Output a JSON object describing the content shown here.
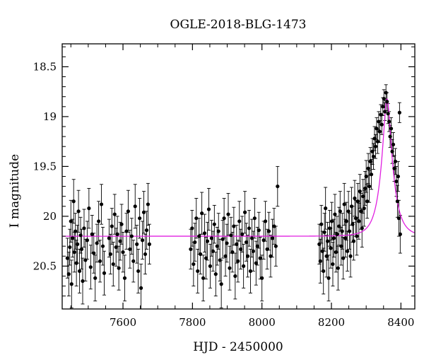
{
  "chart_data": {
    "type": "scatter",
    "title": "OGLE-2018-BLG-1473",
    "xlabel": "HJD - 2450000",
    "ylabel": "I magnitude",
    "xlim": [
      7425,
      8440
    ],
    "ylim": [
      20.93,
      18.27
    ],
    "y_inverted": true,
    "grid": false,
    "x_ticks": [
      7600,
      7800,
      8000,
      8200,
      8400
    ],
    "x_tick_labels": [
      "7600",
      "7800",
      "8000",
      "8200",
      "8400"
    ],
    "y_ticks": [
      18.5,
      19,
      19.5,
      20,
      20.5
    ],
    "y_tick_labels": [
      "18.5",
      "19",
      "19.5",
      "20",
      "20.5"
    ],
    "marker_color": "#000000",
    "model_color": "#e020e0",
    "model_curve": {
      "name": "model",
      "baseline_mag": 20.2,
      "peak_time": 8360,
      "peak_mag": 18.82,
      "tE": 32,
      "u0": 0.3
    },
    "points": [
      {
        "x": 7440,
        "y": 20.42,
        "err": 0.2
      },
      {
        "x": 7444,
        "y": 20.58,
        "err": 0.22
      },
      {
        "x": 7447,
        "y": 20.31,
        "err": 0.18
      },
      {
        "x": 7450,
        "y": 20.05,
        "err": 0.21
      },
      {
        "x": 7452,
        "y": 20.68,
        "err": 0.24
      },
      {
        "x": 7455,
        "y": 20.22,
        "err": 0.19
      },
      {
        "x": 7458,
        "y": 19.85,
        "err": 0.22
      },
      {
        "x": 7460,
        "y": 20.36,
        "err": 0.2
      },
      {
        "x": 7463,
        "y": 20.15,
        "err": 0.18
      },
      {
        "x": 7466,
        "y": 20.47,
        "err": 0.23
      },
      {
        "x": 7469,
        "y": 20.28,
        "err": 0.19
      },
      {
        "x": 7472,
        "y": 19.95,
        "err": 0.21
      },
      {
        "x": 7475,
        "y": 20.55,
        "err": 0.22
      },
      {
        "x": 7478,
        "y": 20.19,
        "err": 0.18
      },
      {
        "x": 7481,
        "y": 20.33,
        "err": 0.2
      },
      {
        "x": 7484,
        "y": 20.65,
        "err": 0.23
      },
      {
        "x": 7488,
        "y": 20.12,
        "err": 0.19
      },
      {
        "x": 7492,
        "y": 20.44,
        "err": 0.21
      },
      {
        "x": 7497,
        "y": 20.24,
        "err": 0.19
      },
      {
        "x": 7502,
        "y": 19.92,
        "err": 0.2
      },
      {
        "x": 7507,
        "y": 20.51,
        "err": 0.22
      },
      {
        "x": 7511,
        "y": 20.18,
        "err": 0.19
      },
      {
        "x": 7516,
        "y": 20.37,
        "err": 0.2
      },
      {
        "x": 7520,
        "y": 20.62,
        "err": 0.23
      },
      {
        "x": 7525,
        "y": 20.27,
        "err": 0.19
      },
      {
        "x": 7530,
        "y": 20.05,
        "err": 0.2
      },
      {
        "x": 7534,
        "y": 20.45,
        "err": 0.21
      },
      {
        "x": 7538,
        "y": 19.88,
        "err": 0.2
      },
      {
        "x": 7542,
        "y": 20.3,
        "err": 0.19
      },
      {
        "x": 7546,
        "y": 20.57,
        "err": 0.22
      },
      {
        "x": 7560,
        "y": 20.22,
        "err": 0.19
      },
      {
        "x": 7564,
        "y": 20.38,
        "err": 0.2
      },
      {
        "x": 7568,
        "y": 20.1,
        "err": 0.18
      },
      {
        "x": 7572,
        "y": 20.48,
        "err": 0.22
      },
      {
        "x": 7576,
        "y": 19.98,
        "err": 0.2
      },
      {
        "x": 7580,
        "y": 20.31,
        "err": 0.19
      },
      {
        "x": 7584,
        "y": 20.18,
        "err": 0.18
      },
      {
        "x": 7588,
        "y": 20.52,
        "err": 0.22
      },
      {
        "x": 7592,
        "y": 20.25,
        "err": 0.19
      },
      {
        "x": 7596,
        "y": 20.08,
        "err": 0.2
      },
      {
        "x": 7600,
        "y": 20.36,
        "err": 0.2
      },
      {
        "x": 7605,
        "y": 20.62,
        "err": 0.23
      },
      {
        "x": 7610,
        "y": 20.15,
        "err": 0.18
      },
      {
        "x": 7615,
        "y": 19.95,
        "err": 0.21
      },
      {
        "x": 7620,
        "y": 20.33,
        "err": 0.19
      },
      {
        "x": 7625,
        "y": 20.2,
        "err": 0.18
      },
      {
        "x": 7630,
        "y": 20.45,
        "err": 0.21
      },
      {
        "x": 7635,
        "y": 19.9,
        "err": 0.22
      },
      {
        "x": 7640,
        "y": 20.28,
        "err": 0.19
      },
      {
        "x": 7644,
        "y": 20.55,
        "err": 0.22
      },
      {
        "x": 7648,
        "y": 20.02,
        "err": 0.2
      },
      {
        "x": 7652,
        "y": 20.72,
        "err": 0.24
      },
      {
        "x": 7656,
        "y": 20.24,
        "err": 0.19
      },
      {
        "x": 7660,
        "y": 19.96,
        "err": 0.21
      },
      {
        "x": 7664,
        "y": 20.38,
        "err": 0.2
      },
      {
        "x": 7668,
        "y": 20.14,
        "err": 0.19
      },
      {
        "x": 7672,
        "y": 19.88,
        "err": 0.21
      },
      {
        "x": 7676,
        "y": 20.28,
        "err": 0.2
      },
      {
        "x": 7795,
        "y": 20.33,
        "err": 0.2
      },
      {
        "x": 7799,
        "y": 20.12,
        "err": 0.18
      },
      {
        "x": 7803,
        "y": 20.48,
        "err": 0.22
      },
      {
        "x": 7807,
        "y": 20.26,
        "err": 0.19
      },
      {
        "x": 7811,
        "y": 20.02,
        "err": 0.2
      },
      {
        "x": 7815,
        "y": 20.55,
        "err": 0.22
      },
      {
        "x": 7819,
        "y": 20.2,
        "err": 0.18
      },
      {
        "x": 7823,
        "y": 20.38,
        "err": 0.2
      },
      {
        "x": 7827,
        "y": 19.97,
        "err": 0.21
      },
      {
        "x": 7831,
        "y": 20.62,
        "err": 0.23
      },
      {
        "x": 7835,
        "y": 20.17,
        "err": 0.19
      },
      {
        "x": 7839,
        "y": 20.42,
        "err": 0.21
      },
      {
        "x": 7843,
        "y": 20.25,
        "err": 0.19
      },
      {
        "x": 7847,
        "y": 19.93,
        "err": 0.21
      },
      {
        "x": 7851,
        "y": 20.5,
        "err": 0.22
      },
      {
        "x": 7855,
        "y": 20.22,
        "err": 0.18
      },
      {
        "x": 7859,
        "y": 20.35,
        "err": 0.2
      },
      {
        "x": 7863,
        "y": 20.08,
        "err": 0.19
      },
      {
        "x": 7867,
        "y": 20.58,
        "err": 0.22
      },
      {
        "x": 7871,
        "y": 20.3,
        "err": 0.19
      },
      {
        "x": 7875,
        "y": 20.15,
        "err": 0.18
      },
      {
        "x": 7879,
        "y": 20.44,
        "err": 0.21
      },
      {
        "x": 7883,
        "y": 20.68,
        "err": 0.24
      },
      {
        "x": 7887,
        "y": 20.23,
        "err": 0.19
      },
      {
        "x": 7891,
        "y": 20.02,
        "err": 0.2
      },
      {
        "x": 7895,
        "y": 20.4,
        "err": 0.2
      },
      {
        "x": 7899,
        "y": 20.27,
        "err": 0.19
      },
      {
        "x": 7903,
        "y": 19.98,
        "err": 0.21
      },
      {
        "x": 7907,
        "y": 20.52,
        "err": 0.22
      },
      {
        "x": 7911,
        "y": 20.19,
        "err": 0.18
      },
      {
        "x": 7915,
        "y": 20.36,
        "err": 0.2
      },
      {
        "x": 7919,
        "y": 20.1,
        "err": 0.19
      },
      {
        "x": 7923,
        "y": 20.6,
        "err": 0.23
      },
      {
        "x": 7927,
        "y": 20.28,
        "err": 0.19
      },
      {
        "x": 7931,
        "y": 20.45,
        "err": 0.21
      },
      {
        "x": 7935,
        "y": 20.05,
        "err": 0.2
      },
      {
        "x": 7939,
        "y": 20.33,
        "err": 0.2
      },
      {
        "x": 7943,
        "y": 20.18,
        "err": 0.18
      },
      {
        "x": 7947,
        "y": 20.5,
        "err": 0.22
      },
      {
        "x": 7951,
        "y": 19.96,
        "err": 0.21
      },
      {
        "x": 7955,
        "y": 20.26,
        "err": 0.19
      },
      {
        "x": 7959,
        "y": 20.4,
        "err": 0.21
      },
      {
        "x": 7963,
        "y": 20.12,
        "err": 0.18
      },
      {
        "x": 7967,
        "y": 20.55,
        "err": 0.22
      },
      {
        "x": 7971,
        "y": 20.22,
        "err": 0.19
      },
      {
        "x": 7975,
        "y": 20.35,
        "err": 0.2
      },
      {
        "x": 7979,
        "y": 20.02,
        "err": 0.2
      },
      {
        "x": 7983,
        "y": 20.47,
        "err": 0.22
      },
      {
        "x": 7987,
        "y": 20.3,
        "err": 0.19
      },
      {
        "x": 7991,
        "y": 20.14,
        "err": 0.18
      },
      {
        "x": 7995,
        "y": 20.42,
        "err": 0.21
      },
      {
        "x": 8000,
        "y": 20.62,
        "err": 0.23
      },
      {
        "x": 8005,
        "y": 20.24,
        "err": 0.19
      },
      {
        "x": 8010,
        "y": 20.05,
        "err": 0.2
      },
      {
        "x": 8015,
        "y": 20.33,
        "err": 0.2
      },
      {
        "x": 8020,
        "y": 20.15,
        "err": 0.19
      },
      {
        "x": 8025,
        "y": 20.4,
        "err": 0.21
      },
      {
        "x": 8030,
        "y": 20.22,
        "err": 0.19
      },
      {
        "x": 8035,
        "y": 20.1,
        "err": 0.18
      },
      {
        "x": 8040,
        "y": 20.3,
        "err": 0.2
      },
      {
        "x": 8045,
        "y": 19.7,
        "err": 0.2
      },
      {
        "x": 8165,
        "y": 20.28,
        "err": 0.2
      },
      {
        "x": 8168,
        "y": 20.45,
        "err": 0.22
      },
      {
        "x": 8171,
        "y": 20.08,
        "err": 0.19
      },
      {
        "x": 8174,
        "y": 20.35,
        "err": 0.2
      },
      {
        "x": 8177,
        "y": 20.55,
        "err": 0.23
      },
      {
        "x": 8180,
        "y": 20.16,
        "err": 0.19
      },
      {
        "x": 8183,
        "y": 19.92,
        "err": 0.21
      },
      {
        "x": 8186,
        "y": 20.4,
        "err": 0.21
      },
      {
        "x": 8189,
        "y": 20.25,
        "err": 0.19
      },
      {
        "x": 8192,
        "y": 20.62,
        "err": 0.23
      },
      {
        "x": 8195,
        "y": 20.12,
        "err": 0.18
      },
      {
        "x": 8198,
        "y": 20.32,
        "err": 0.2
      },
      {
        "x": 8201,
        "y": 20.05,
        "err": 0.19
      },
      {
        "x": 8204,
        "y": 20.48,
        "err": 0.22
      },
      {
        "x": 8207,
        "y": 20.22,
        "err": 0.19
      },
      {
        "x": 8210,
        "y": 19.98,
        "err": 0.2
      },
      {
        "x": 8213,
        "y": 20.36,
        "err": 0.2
      },
      {
        "x": 8216,
        "y": 20.18,
        "err": 0.18
      },
      {
        "x": 8219,
        "y": 20.52,
        "err": 0.22
      },
      {
        "x": 8222,
        "y": 20.1,
        "err": 0.19
      },
      {
        "x": 8225,
        "y": 19.95,
        "err": 0.2
      },
      {
        "x": 8228,
        "y": 20.3,
        "err": 0.19
      },
      {
        "x": 8231,
        "y": 20.15,
        "err": 0.18
      },
      {
        "x": 8234,
        "y": 20.42,
        "err": 0.21
      },
      {
        "x": 8237,
        "y": 19.88,
        "err": 0.21
      },
      {
        "x": 8240,
        "y": 20.22,
        "err": 0.19
      },
      {
        "x": 8243,
        "y": 20.05,
        "err": 0.19
      },
      {
        "x": 8246,
        "y": 20.35,
        "err": 0.2
      },
      {
        "x": 8249,
        "y": 19.95,
        "err": 0.2
      },
      {
        "x": 8252,
        "y": 20.15,
        "err": 0.18
      },
      {
        "x": 8255,
        "y": 20.4,
        "err": 0.21
      },
      {
        "x": 8258,
        "y": 19.9,
        "err": 0.19
      },
      {
        "x": 8261,
        "y": 20.08,
        "err": 0.18
      },
      {
        "x": 8264,
        "y": 20.25,
        "err": 0.19
      },
      {
        "x": 8267,
        "y": 19.82,
        "err": 0.18
      },
      {
        "x": 8270,
        "y": 20.02,
        "err": 0.18
      },
      {
        "x": 8273,
        "y": 20.2,
        "err": 0.19
      },
      {
        "x": 8276,
        "y": 19.85,
        "err": 0.18
      },
      {
        "x": 8279,
        "y": 20.05,
        "err": 0.18
      },
      {
        "x": 8282,
        "y": 19.75,
        "err": 0.17
      },
      {
        "x": 8285,
        "y": 19.95,
        "err": 0.18
      },
      {
        "x": 8288,
        "y": 20.12,
        "err": 0.19
      },
      {
        "x": 8291,
        "y": 19.8,
        "err": 0.17
      },
      {
        "x": 8294,
        "y": 19.92,
        "err": 0.18
      },
      {
        "x": 8297,
        "y": 19.72,
        "err": 0.17
      },
      {
        "x": 8300,
        "y": 19.6,
        "err": 0.16
      },
      {
        "x": 8303,
        "y": 19.85,
        "err": 0.17
      },
      {
        "x": 8306,
        "y": 19.52,
        "err": 0.15
      },
      {
        "x": 8309,
        "y": 19.7,
        "err": 0.16
      },
      {
        "x": 8312,
        "y": 19.45,
        "err": 0.14
      },
      {
        "x": 8315,
        "y": 19.58,
        "err": 0.15
      },
      {
        "x": 8318,
        "y": 19.35,
        "err": 0.13
      },
      {
        "x": 8321,
        "y": 19.4,
        "err": 0.13
      },
      {
        "x": 8324,
        "y": 19.22,
        "err": 0.12
      },
      {
        "x": 8327,
        "y": 19.3,
        "err": 0.12
      },
      {
        "x": 8330,
        "y": 19.12,
        "err": 0.11
      },
      {
        "x": 8333,
        "y": 19.25,
        "err": 0.12
      },
      {
        "x": 8336,
        "y": 19.05,
        "err": 0.1
      },
      {
        "x": 8339,
        "y": 19.15,
        "err": 0.11
      },
      {
        "x": 8342,
        "y": 18.98,
        "err": 0.1
      },
      {
        "x": 8345,
        "y": 19.08,
        "err": 0.1
      },
      {
        "x": 8348,
        "y": 18.9,
        "err": 0.09
      },
      {
        "x": 8351,
        "y": 18.82,
        "err": 0.09
      },
      {
        "x": 8354,
        "y": 18.95,
        "err": 0.09
      },
      {
        "x": 8357,
        "y": 18.76,
        "err": 0.08
      },
      {
        "x": 8360,
        "y": 18.85,
        "err": 0.09
      },
      {
        "x": 8363,
        "y": 18.97,
        "err": 0.1
      },
      {
        "x": 8366,
        "y": 19.05,
        "err": 0.1
      },
      {
        "x": 8369,
        "y": 19.2,
        "err": 0.11
      },
      {
        "x": 8372,
        "y": 19.12,
        "err": 0.11
      },
      {
        "x": 8375,
        "y": 19.35,
        "err": 0.12
      },
      {
        "x": 8378,
        "y": 19.28,
        "err": 0.12
      },
      {
        "x": 8381,
        "y": 19.52,
        "err": 0.13
      },
      {
        "x": 8384,
        "y": 19.45,
        "err": 0.13
      },
      {
        "x": 8387,
        "y": 19.65,
        "err": 0.15
      },
      {
        "x": 8390,
        "y": 19.85,
        "err": 0.16
      },
      {
        "x": 8392,
        "y": 19.6,
        "err": 0.15
      },
      {
        "x": 8394,
        "y": 20.02,
        "err": 0.18
      },
      {
        "x": 8396,
        "y": 18.96,
        "err": 0.1
      },
      {
        "x": 8398,
        "y": 20.18,
        "err": 0.19
      }
    ]
  }
}
